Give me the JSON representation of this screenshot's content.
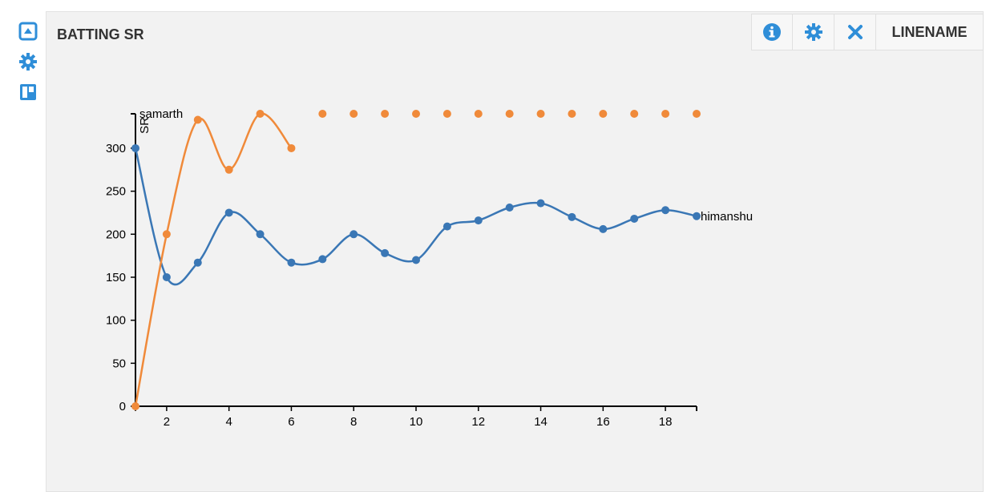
{
  "side_toolbar": {
    "items": [
      {
        "icon": "panel-toggle-icon"
      },
      {
        "icon": "gear-icon"
      },
      {
        "icon": "layout-icon"
      }
    ]
  },
  "panel": {
    "title": "BATTING SR",
    "actions": {
      "info_icon": "info-icon",
      "settings_icon": "gear-icon",
      "close_icon": "close-icon",
      "linename_label": "LINENAME"
    }
  },
  "colors": {
    "accent": "#2f8ed8",
    "series_blue": "#3a77b5",
    "series_orange": "#f08a3a",
    "panel_bg": "#f2f2f2"
  },
  "chart_data": {
    "type": "line",
    "title": "",
    "xlabel": "",
    "ylabel": "SR",
    "xlim": [
      1,
      19
    ],
    "ylim": [
      0,
      340
    ],
    "x_ticks": [
      2,
      4,
      6,
      8,
      10,
      12,
      14,
      16,
      18
    ],
    "y_ticks": [
      0,
      50,
      100,
      150,
      200,
      250,
      300
    ],
    "grid": false,
    "series": [
      {
        "name": "himanshu",
        "color": "#3a77b5",
        "points": [
          [
            1,
            300
          ],
          [
            2,
            150
          ],
          [
            3,
            167
          ],
          [
            4,
            225
          ],
          [
            5,
            200
          ],
          [
            6,
            167
          ],
          [
            7,
            171
          ],
          [
            8,
            200
          ],
          [
            9,
            178
          ],
          [
            10,
            170
          ],
          [
            11,
            209
          ],
          [
            12,
            216
          ],
          [
            13,
            231
          ],
          [
            14,
            236
          ],
          [
            15,
            220
          ],
          [
            16,
            206
          ],
          [
            17,
            218
          ],
          [
            18,
            228
          ],
          [
            19,
            221
          ]
        ]
      },
      {
        "name": "samarth",
        "color": "#f08a3a",
        "points": [
          [
            1,
            0
          ],
          [
            2,
            200
          ],
          [
            3,
            333
          ],
          [
            4,
            275
          ],
          [
            5,
            340
          ],
          [
            6,
            300
          ]
        ],
        "extra_points": [
          [
            7,
            340
          ],
          [
            8,
            340
          ],
          [
            9,
            340
          ],
          [
            10,
            340
          ],
          [
            11,
            340
          ],
          [
            12,
            340
          ],
          [
            13,
            340
          ],
          [
            14,
            340
          ],
          [
            15,
            340
          ],
          [
            16,
            340
          ],
          [
            17,
            340
          ],
          [
            18,
            340
          ],
          [
            19,
            340
          ]
        ]
      }
    ]
  }
}
